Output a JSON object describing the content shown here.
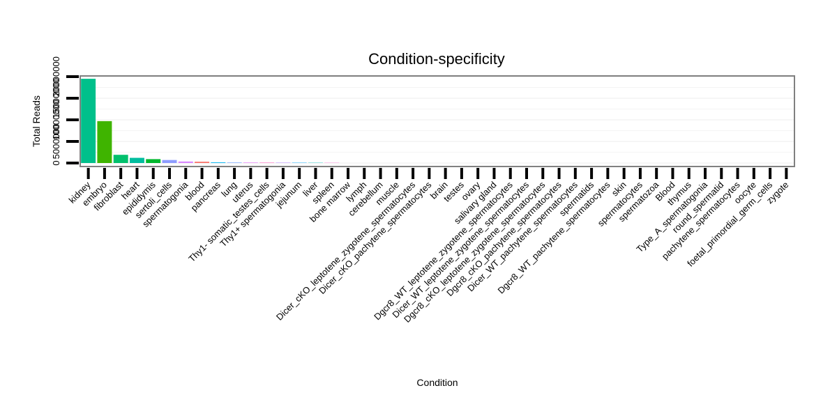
{
  "chart_data": {
    "type": "bar",
    "title": "Condition-specificity",
    "xlabel": "Condition",
    "ylabel": "Total Reads",
    "y_tick_labels": [
      "0",
      "5000000",
      "10000000",
      "15000000",
      "20000000"
    ],
    "ylim": [
      0,
      20000000
    ],
    "grid": true,
    "categories": [
      "kidney",
      "embryo",
      "fibroblast",
      "heart",
      "epididymis",
      "sertoli_cells",
      "spermatogonia",
      "blood",
      "pancreas",
      "lung",
      "uterus",
      "Thy1- somatic_testes_cells",
      "Thy1+ spermatogonia",
      "jejunum",
      "liver",
      "spleen",
      "bone marrow",
      "lymph",
      "cerebellum",
      "muscle",
      "Dicer_cKO_leptotene_zygotene_spermatocytes",
      "Dicer_cKO_pachytene_spermatocytes",
      "brain",
      "testes",
      "ovary",
      "salivary gland",
      "Dgcr8_WT_leptotene_zygotene_spermatocytes",
      "Dicer_WT_leptotene_zygotene_spermatocytes",
      "Dgcr8_cKO_leptotene_zygotene_spermatocytes",
      "Dgcr8_cKO_pachytene_spermatocytes",
      "Dicer_WT_pachytene_spermatocytes",
      "spermatids",
      "Dgcr8_WT_pachytene_spermatocytes",
      "skin",
      "spermatocytes",
      "spermatozoa",
      "Blood",
      "thymus",
      "Type_A_spermatogonia",
      "round_spermatid",
      "pachytene_spermatocytes",
      "oocyte",
      "foetal_primordial_germ_cells",
      "zygote"
    ],
    "values": [
      19500000,
      9700000,
      1900000,
      1200000,
      900000,
      700000,
      350000,
      300000,
      150000,
      120000,
      100000,
      90000,
      80000,
      70000,
      60000,
      50000,
      0,
      0,
      0,
      0,
      0,
      0,
      0,
      0,
      0,
      0,
      0,
      0,
      0,
      0,
      0,
      0,
      0,
      0,
      0,
      0,
      0,
      0,
      0,
      0,
      0,
      0,
      0,
      0
    ],
    "colors": [
      "#00c08b",
      "#3fb400",
      "#00c06c",
      "#00bd9e",
      "#00b72e",
      "#8e9dff",
      "#d989ff",
      "#f8766d",
      "#00b4f0",
      "#7aa8ff",
      "#e36ef6",
      "#ff62bc",
      "#b385ff",
      "#00a9ff",
      "#00bfc4",
      "#fd61d1",
      "#00c1a5",
      "#39b600",
      "#a3a500",
      "#d89000",
      "#e58700",
      "#c99800",
      "#85ad00",
      "#5bb300",
      "#00ba38",
      "#00bf7d",
      "#00c0b8",
      "#00bcd8",
      "#00b0f6",
      "#35a2ff",
      "#9590ff",
      "#c77cff",
      "#e76bf3",
      "#fa62db",
      "#ff62bc",
      "#ff6c91",
      "#f8766d",
      "#e9842c",
      "#d69100",
      "#bc9d00",
      "#9ca700",
      "#6fb000",
      "#00b813",
      "#00bd61"
    ]
  }
}
